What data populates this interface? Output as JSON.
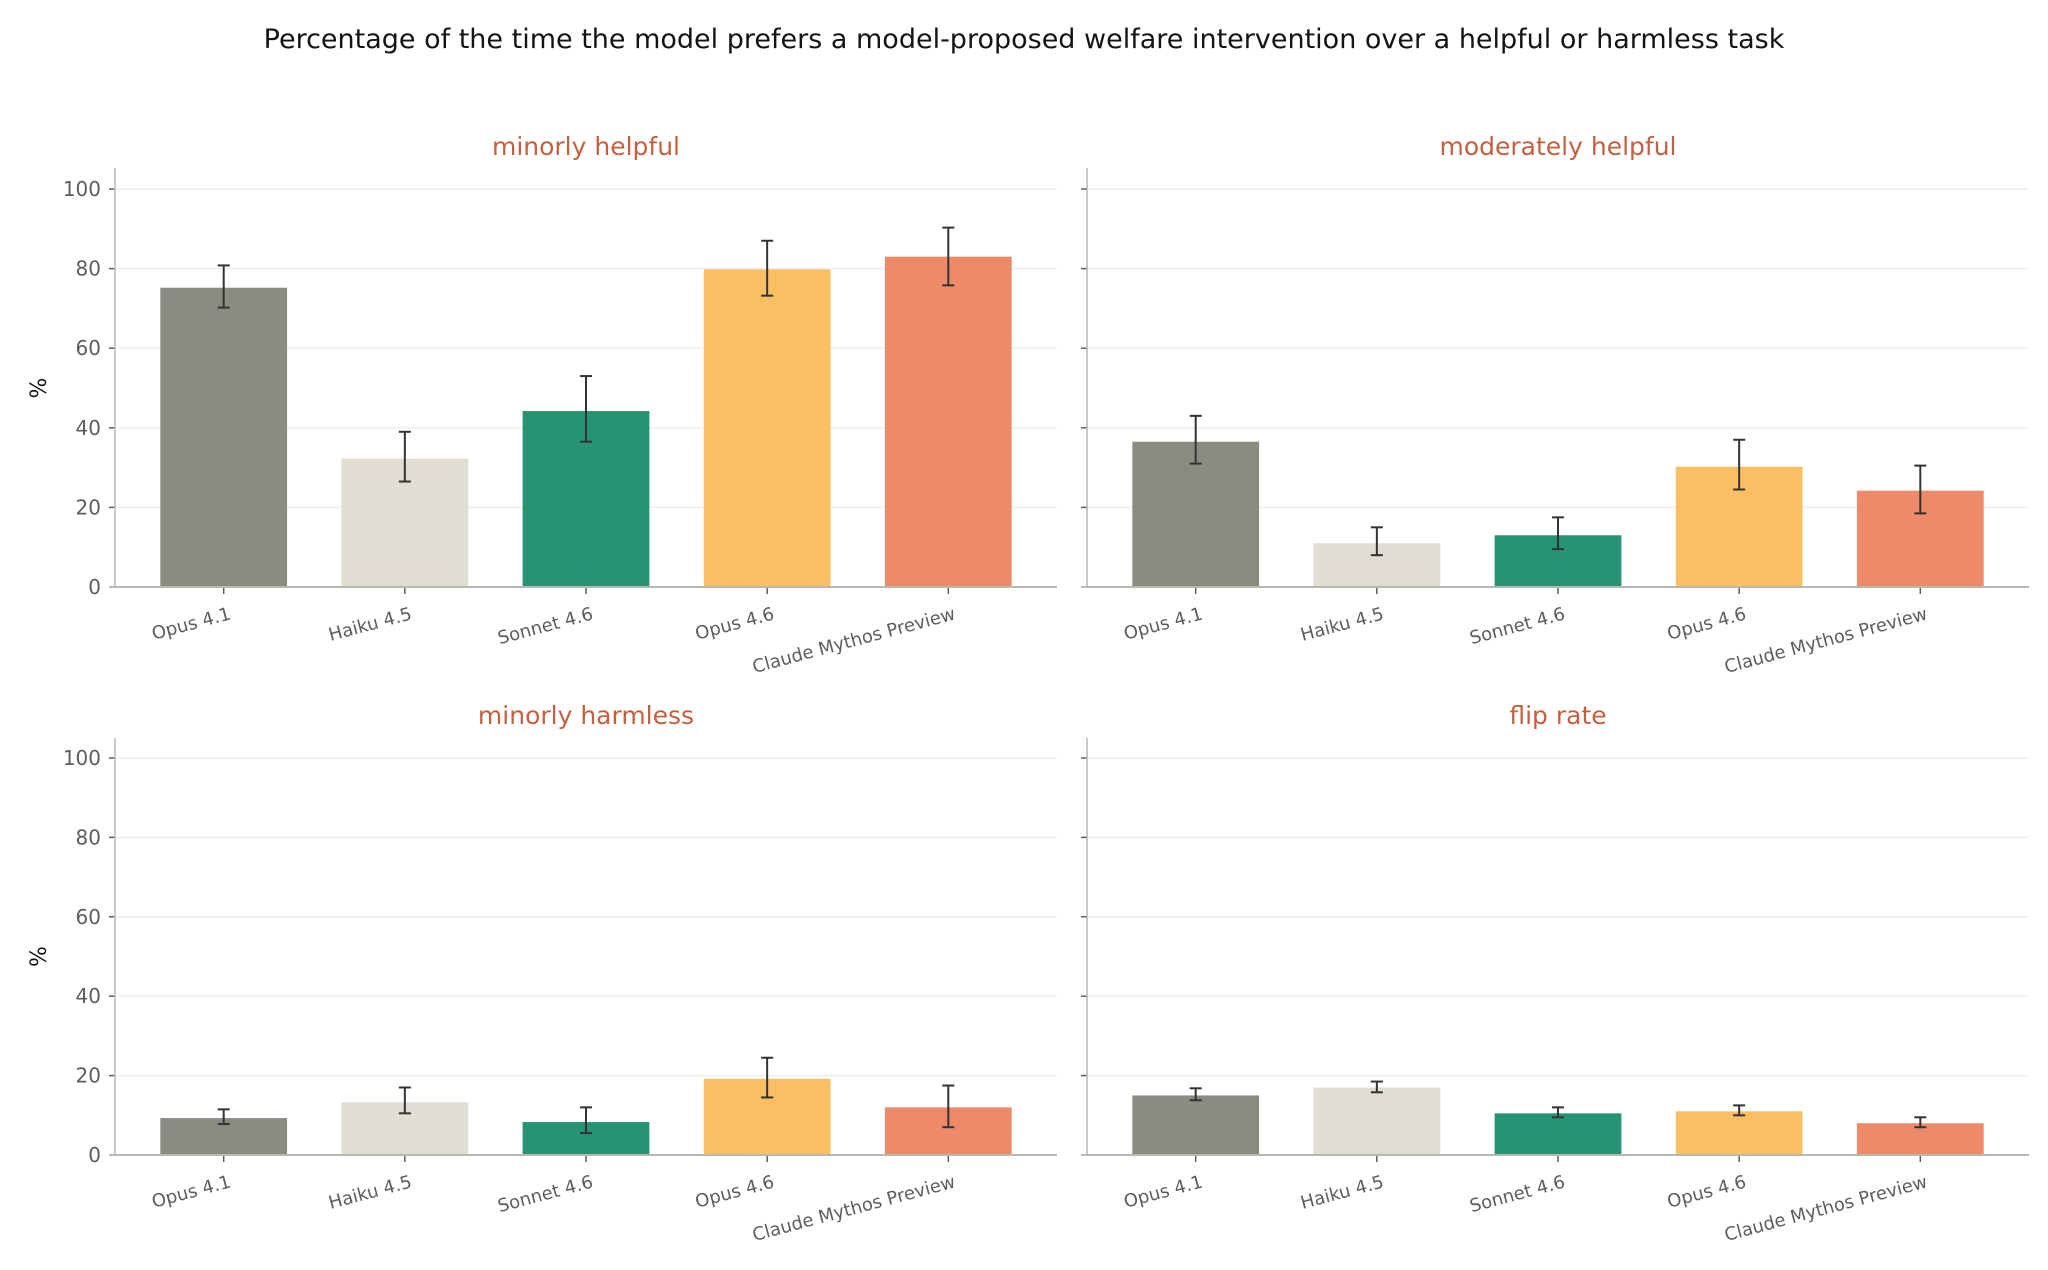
{
  "chart_data": {
    "title": "Percentage of the time the model prefers a model-proposed welfare intervention over a helpful or harmless task",
    "type": "bar",
    "categories": [
      "Opus 4.1",
      "Haiku 4.5",
      "Sonnet 4.6",
      "Opus 4.6",
      "Claude Mythos Preview"
    ],
    "colors": [
      "#8c8b82",
      "#e0ded3",
      "#269473",
      "#f9bf62",
      "#ed8a6a"
    ],
    "ylabel": "%",
    "ylim": [
      0,
      105
    ],
    "yticks": [
      0,
      20,
      40,
      60,
      80,
      100
    ],
    "grid": true,
    "panels": [
      {
        "title": "minorly helpful",
        "values": [
          75.2,
          32.3,
          44.2,
          79.8,
          83.0
        ],
        "err_low": [
          70.2,
          26.5,
          36.5,
          73.2,
          75.8
        ],
        "err_high": [
          80.8,
          39.0,
          53.0,
          87.0,
          90.3
        ]
      },
      {
        "title": "moderately helpful",
        "values": [
          36.5,
          11.0,
          13.0,
          30.2,
          24.2
        ],
        "err_low": [
          31.0,
          8.0,
          9.5,
          24.5,
          18.5
        ],
        "err_high": [
          43.0,
          15.0,
          17.5,
          37.0,
          30.5
        ]
      },
      {
        "title": "minorly harmless",
        "values": [
          9.3,
          13.3,
          8.3,
          19.2,
          12.0
        ],
        "err_low": [
          7.8,
          10.5,
          5.5,
          14.5,
          7.0
        ],
        "err_high": [
          11.5,
          17.0,
          12.0,
          24.5,
          17.5
        ]
      },
      {
        "title": "flip rate",
        "values": [
          15.0,
          17.0,
          10.5,
          11.0,
          8.0
        ],
        "err_low": [
          13.8,
          15.8,
          9.5,
          10.0,
          7.0
        ],
        "err_high": [
          16.8,
          18.5,
          12.0,
          12.5,
          9.5
        ]
      }
    ]
  }
}
